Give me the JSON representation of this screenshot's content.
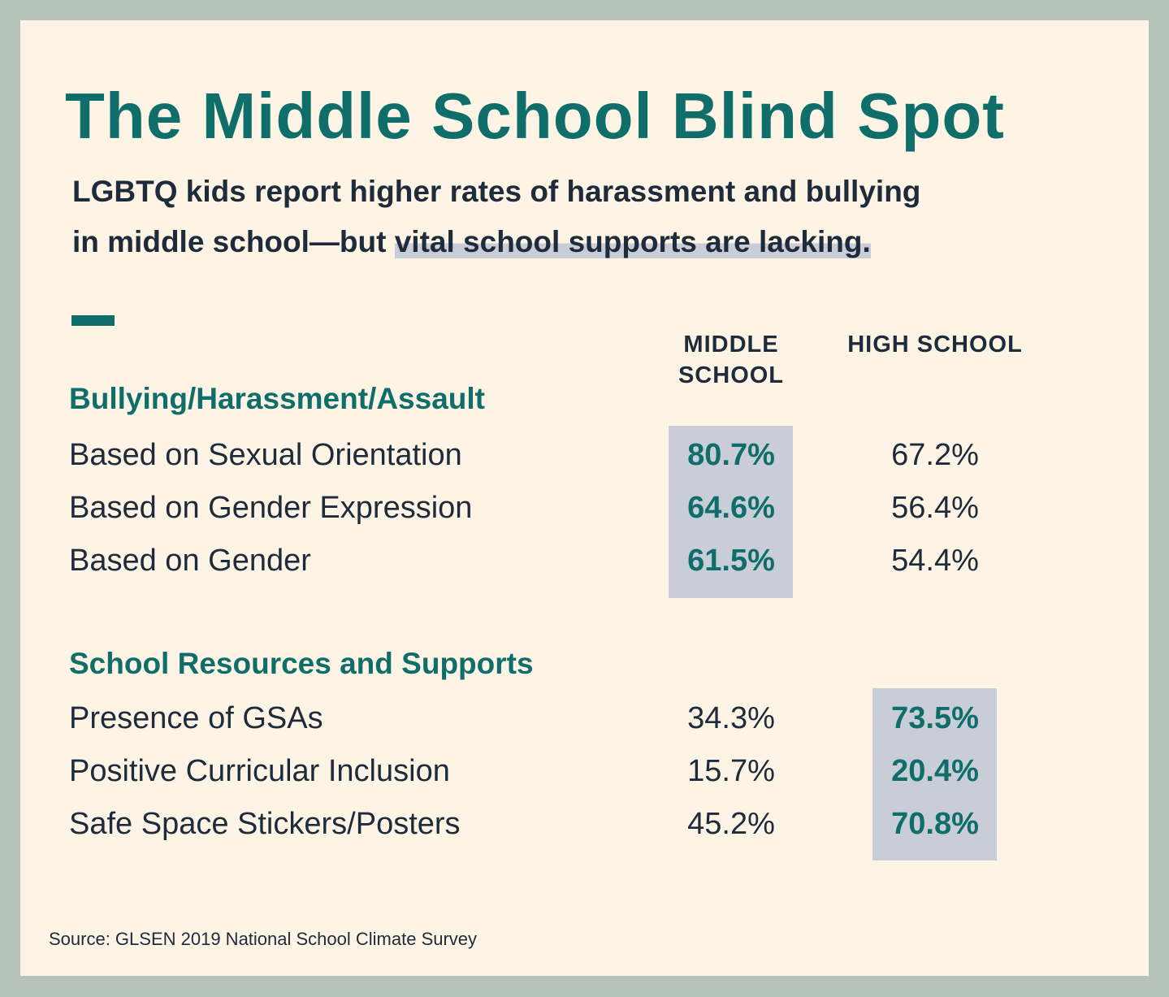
{
  "title": "The Middle School Blind Spot",
  "subtitle": {
    "line1": "LGBTQ kids report higher rates of harassment and bullying",
    "line2": "in middle school—but ",
    "highlight": "vital school supports are lacking."
  },
  "table": {
    "columns": [
      "MIDDLE SCHOOL",
      "HIGH SCHOOL"
    ],
    "sections": [
      {
        "heading": "Bullying/Harassment/Assault",
        "highlight_column": 0,
        "rows": [
          [
            "Based on Sexual Orientation",
            "80.7%",
            "67.2%"
          ],
          [
            "Based on Gender Expression",
            "64.6%",
            "56.4%"
          ],
          [
            "Based on Gender",
            "61.5%",
            "54.4%"
          ]
        ]
      },
      {
        "heading": "School Resources and Supports",
        "highlight_column": 1,
        "rows": [
          [
            "Presence of GSAs",
            "34.3%",
            "73.5%"
          ],
          [
            "Positive Curricular Inclusion",
            "15.7%",
            "20.4%"
          ],
          [
            "Safe Space Stickers/Posters",
            "45.2%",
            "70.8%"
          ]
        ]
      }
    ]
  },
  "source": "Source: GLSEN 2019 National School Climate Survey"
}
